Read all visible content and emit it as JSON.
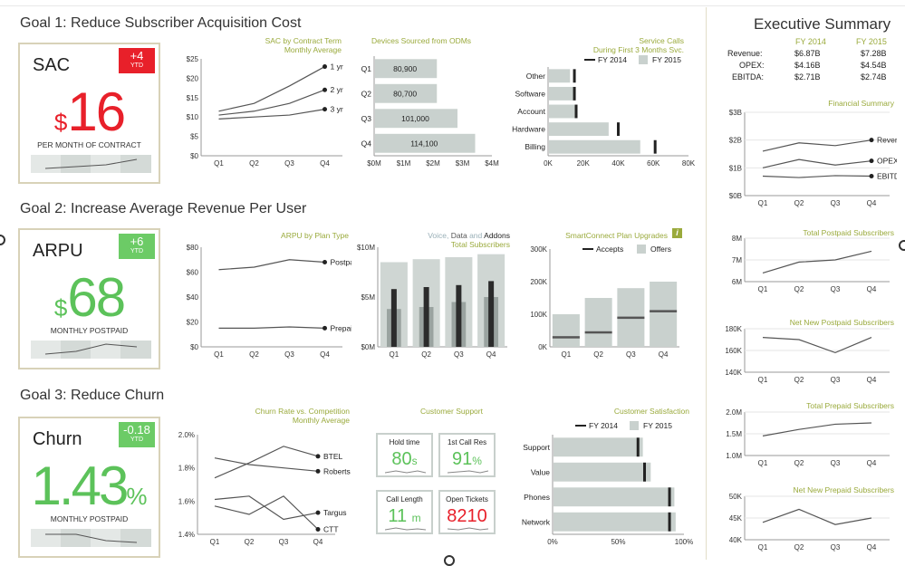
{
  "goals": [
    {
      "title": "Goal 1: Reduce Subscriber Acquisition Cost"
    },
    {
      "title": "Goal 2: Increase Average Revenue Per User"
    },
    {
      "title": "Goal 3: Reduce Churn"
    }
  ],
  "kpis": [
    {
      "name": "SAC",
      "badge": "+4",
      "badge_ytd": "YTD",
      "prefix": "$",
      "value": "16",
      "suffix": "",
      "sub": "PER MONTH OF CONTRACT",
      "color": "#e8202a",
      "badge_color": "#e8202a"
    },
    {
      "name": "ARPU",
      "badge": "+6",
      "badge_ytd": "YTD",
      "prefix": "$",
      "value": "68",
      "suffix": "",
      "sub": "MONTHLY POSTPAID",
      "color": "#5cc25a",
      "badge_color": "#6ccb66"
    },
    {
      "name": "Churn",
      "badge": "-0.18",
      "badge_ytd": "YTD",
      "prefix": "",
      "value": "1.43",
      "suffix": "%",
      "sub": "MONTHLY POSTPAID",
      "color": "#5cc25a",
      "badge_color": "#6ccb66"
    }
  ],
  "panels": {
    "sac_term": {
      "title": "SAC by Contract Term",
      "subtitle": "Monthly Average"
    },
    "odm": {
      "title": "Devices Sourced from ODMs",
      "subtitle": ""
    },
    "service": {
      "title": "Service Calls",
      "subtitle": "During First 3 Months Svc."
    },
    "arpu_plan": {
      "title": "ARPU by Plan Type",
      "subtitle": ""
    },
    "vda": {
      "title": "Voice, Data and Addons",
      "subtitle": "Total Subscribers"
    },
    "smart": {
      "title": "SmartConnect Plan Upgrades",
      "subtitle": ""
    },
    "churn_comp": {
      "title": "Churn Rate vs. Competition",
      "subtitle": "Monthly Average"
    },
    "support": {
      "title": "Customer Support",
      "subtitle": ""
    },
    "satisfaction": {
      "title": "Customer Satisfaction",
      "subtitle": ""
    },
    "financial": {
      "title": "Financial Summary",
      "subtitle": ""
    },
    "postpaid": {
      "title": "Total Postpaid Subscribers",
      "subtitle": ""
    },
    "net_postpaid": {
      "title": "Net New Postpaid Subscribers",
      "subtitle": ""
    },
    "prepaid": {
      "title": "Total Prepaid Subscribers",
      "subtitle": ""
    },
    "net_prepaid": {
      "title": "Net New Prepaid Subscribers",
      "subtitle": ""
    }
  },
  "support_tiles": [
    {
      "label": "Hold time",
      "value": "80",
      "unit": "s",
      "color": "#5cc25a"
    },
    {
      "label": "1st Call Res",
      "value": "91",
      "unit": "%",
      "color": "#5cc25a"
    },
    {
      "label": "Call Length",
      "value": "11",
      "unit": "m",
      "color": "#5cc25a"
    },
    {
      "label": "Open Tickets",
      "value": "8210",
      "unit": "",
      "color": "#e8202a"
    }
  ],
  "executive": {
    "title": "Executive Summary",
    "columns": [
      "FY 2014",
      "FY 2015"
    ],
    "rows": [
      {
        "label": "Revenue:",
        "fy2014": "$6.87B",
        "fy2015": "$7.28B"
      },
      {
        "label": "OPEX:",
        "fy2014": "$4.16B",
        "fy2015": "$4.54B"
      },
      {
        "label": "EBITDA:",
        "fy2014": "$2.71B",
        "fy2015": "$2.74B"
      }
    ]
  },
  "chart_data": [
    {
      "id": "sac_term",
      "type": "line",
      "x": [
        "Q1",
        "Q2",
        "Q3",
        "Q4"
      ],
      "yticks": [
        "$0",
        "$5",
        "$10",
        "$15",
        "$20",
        "$25"
      ],
      "ylim": [
        0,
        25
      ],
      "series": [
        {
          "name": "1 yr",
          "values": [
            11.5,
            13.5,
            18,
            23
          ]
        },
        {
          "name": "2 yr",
          "values": [
            10.5,
            11.5,
            13.5,
            17
          ]
        },
        {
          "name": "3 yr",
          "values": [
            9.5,
            10,
            10.5,
            12
          ]
        }
      ]
    },
    {
      "id": "odm",
      "type": "bar",
      "orientation": "horizontal",
      "categories": [
        "Q1",
        "Q2",
        "Q3",
        "Q4"
      ],
      "values": [
        2.1,
        2.1,
        2.8,
        3.4
      ],
      "labels": [
        "80,900",
        "80,700",
        "101,000",
        "114,100"
      ],
      "xticks": [
        "$0M",
        "$1M",
        "$2M",
        "$3M",
        "$4M"
      ],
      "xlim": [
        0,
        4
      ]
    },
    {
      "id": "service",
      "type": "bar",
      "orientation": "horizontal",
      "categories": [
        "Other",
        "Software",
        "Account",
        "Hardware",
        "Billing"
      ],
      "legend": [
        "FY 2014",
        "FY 2015"
      ],
      "series": [
        {
          "name": "FY 2015",
          "values": [
            12000,
            14000,
            16000,
            34000,
            52000
          ]
        },
        {
          "name": "FY 2014",
          "values": [
            15000,
            15000,
            16000,
            40000,
            61000
          ]
        }
      ],
      "xticks": [
        "0K",
        "20K",
        "40K",
        "60K",
        "80K"
      ],
      "xlim": [
        0,
        80000
      ]
    },
    {
      "id": "arpu_plan",
      "type": "line",
      "x": [
        "Q1",
        "Q2",
        "Q3",
        "Q4"
      ],
      "yticks": [
        "$0",
        "$20",
        "$40",
        "$60",
        "$80"
      ],
      "ylim": [
        0,
        80
      ],
      "series": [
        {
          "name": "Postpaid",
          "values": [
            62,
            64,
            70,
            68
          ]
        },
        {
          "name": "Prepaid",
          "values": [
            15,
            15,
            16,
            15
          ]
        }
      ]
    },
    {
      "id": "vda",
      "type": "bar",
      "categories": [
        "Q1",
        "Q2",
        "Q3",
        "Q4"
      ],
      "yticks": [
        "$0M",
        "$5M",
        "$10M"
      ],
      "ylim": [
        0,
        10
      ],
      "legend": [
        "Voice",
        "Data",
        "Addons"
      ],
      "series": [
        {
          "name": "Voice",
          "values": [
            8.5,
            8.8,
            9.0,
            9.3
          ]
        },
        {
          "name": "Data",
          "values": [
            3.8,
            4.0,
            4.5,
            5.0
          ]
        },
        {
          "name": "Addons",
          "values": [
            5.8,
            6.0,
            6.2,
            6.6
          ]
        }
      ]
    },
    {
      "id": "smart",
      "type": "bar",
      "categories": [
        "Q1",
        "Q2",
        "Q3",
        "Q4"
      ],
      "yticks": [
        "0K",
        "100K",
        "200K",
        "300K"
      ],
      "ylim": [
        0,
        300000
      ],
      "legend": [
        "Accepts",
        "Offers"
      ],
      "series": [
        {
          "name": "Offers",
          "values": [
            100000,
            150000,
            180000,
            200000
          ]
        },
        {
          "name": "Accepts",
          "values": [
            30000,
            45000,
            90000,
            110000
          ]
        }
      ]
    },
    {
      "id": "churn_comp",
      "type": "line",
      "x": [
        "Q1",
        "Q2",
        "Q3",
        "Q4"
      ],
      "yticks": [
        "1.4%",
        "1.6%",
        "1.8%",
        "2.0%"
      ],
      "ylim": [
        1.4,
        2.0
      ],
      "series": [
        {
          "name": "BTEL",
          "values": [
            1.74,
            1.83,
            1.93,
            1.87
          ]
        },
        {
          "name": "Roberts",
          "values": [
            1.86,
            1.82,
            1.8,
            1.78
          ]
        },
        {
          "name": "Targus",
          "values": [
            1.61,
            1.63,
            1.49,
            1.53
          ]
        },
        {
          "name": "CTT",
          "values": [
            1.57,
            1.52,
            1.63,
            1.43
          ]
        }
      ]
    },
    {
      "id": "satisfaction",
      "type": "bar",
      "orientation": "horizontal",
      "categories": [
        "Support",
        "Value",
        "Phones",
        "Network"
      ],
      "legend": [
        "FY 2014",
        "FY 2015"
      ],
      "series": [
        {
          "name": "FY 2015",
          "values": [
            68,
            74,
            92,
            93
          ]
        },
        {
          "name": "FY 2014",
          "values": [
            65,
            70,
            89,
            89
          ]
        }
      ],
      "xticks": [
        "0%",
        "50%",
        "100%"
      ],
      "xlim": [
        0,
        100
      ]
    },
    {
      "id": "financial",
      "type": "line",
      "x": [
        "Q1",
        "Q2",
        "Q3",
        "Q4"
      ],
      "yticks": [
        "$0B",
        "$1B",
        "$2B",
        "$3B"
      ],
      "ylim": [
        0,
        3
      ],
      "series": [
        {
          "name": "Revenue",
          "values": [
            1.6,
            1.9,
            1.8,
            2.0
          ]
        },
        {
          "name": "OPEX",
          "values": [
            1.0,
            1.3,
            1.1,
            1.25
          ]
        },
        {
          "name": "EBITDA",
          "values": [
            0.7,
            0.65,
            0.72,
            0.7
          ]
        }
      ]
    },
    {
      "id": "postpaid",
      "type": "line",
      "x": [
        "Q1",
        "Q2",
        "Q3",
        "Q4"
      ],
      "yticks": [
        "6M",
        "7M",
        "8M"
      ],
      "ylim": [
        6,
        8
      ],
      "series": [
        {
          "values": [
            6.4,
            6.9,
            7.0,
            7.4
          ]
        }
      ]
    },
    {
      "id": "net_postpaid",
      "type": "line",
      "x": [
        "Q1",
        "Q2",
        "Q3",
        "Q4"
      ],
      "yticks": [
        "140K",
        "160K",
        "180K"
      ],
      "ylim": [
        140,
        180
      ],
      "series": [
        {
          "values": [
            172,
            170,
            158,
            172
          ]
        }
      ]
    },
    {
      "id": "prepaid",
      "type": "line",
      "x": [
        "Q1",
        "Q2",
        "Q3",
        "Q4"
      ],
      "yticks": [
        "1.0M",
        "1.5M",
        "2.0M"
      ],
      "ylim": [
        1.0,
        2.0
      ],
      "series": [
        {
          "values": [
            1.45,
            1.6,
            1.72,
            1.75
          ]
        }
      ]
    },
    {
      "id": "net_prepaid",
      "type": "line",
      "x": [
        "Q1",
        "Q2",
        "Q3",
        "Q4"
      ],
      "yticks": [
        "40K",
        "45K",
        "50K"
      ],
      "ylim": [
        40,
        50
      ],
      "series": [
        {
          "values": [
            44,
            47,
            43.5,
            45
          ]
        }
      ]
    }
  ],
  "colors": {
    "accent": "#9aaa3c",
    "bar": "#c9d1ce",
    "dark": "#333333",
    "red": "#e8202a",
    "green": "#5cc25a"
  }
}
